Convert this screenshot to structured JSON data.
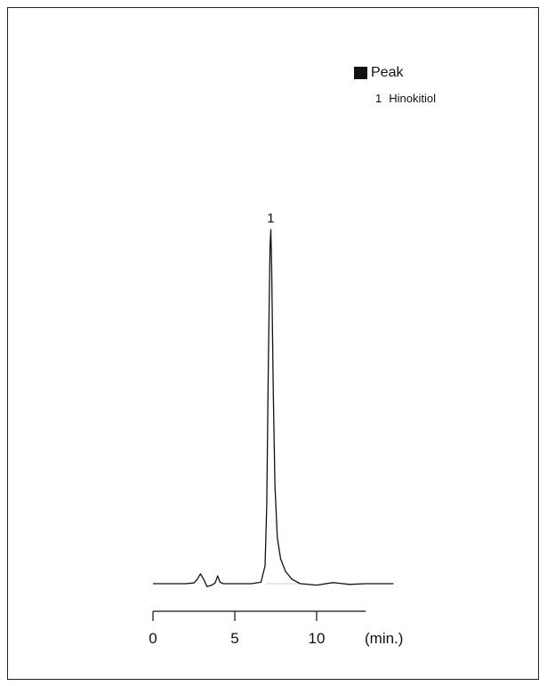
{
  "chart_data": {
    "type": "line",
    "title": "",
    "xlabel": "(min.)",
    "ylabel": "",
    "xlim": [
      0,
      13
    ],
    "x_ticks": [
      0,
      5,
      10
    ],
    "x_tick_labels": [
      "0",
      "5",
      "10"
    ],
    "grid": false,
    "legend": {
      "title": "Peak",
      "entries": [
        {
          "number": "1",
          "name": "Hinokitiol"
        }
      ]
    },
    "peak_labels": [
      {
        "label": "1",
        "x": 7.2
      }
    ],
    "series": [
      {
        "x": [
          0.0,
          1.0,
          2.0,
          2.5,
          2.7,
          2.9,
          3.1,
          3.3,
          3.6,
          3.8,
          3.95,
          4.1,
          4.3,
          5.0,
          6.0,
          6.6,
          6.85,
          6.95,
          7.05,
          7.15,
          7.2,
          7.25,
          7.35,
          7.45,
          7.6,
          7.8,
          8.1,
          8.5,
          9.0,
          10.0,
          11.0,
          12.0,
          13.0,
          14.7
        ],
        "y": [
          0.0,
          0.0,
          0.0,
          0.002,
          0.012,
          0.028,
          0.012,
          -0.008,
          -0.004,
          0.002,
          0.022,
          0.004,
          0.0,
          0.0,
          0.0,
          0.004,
          0.05,
          0.22,
          0.62,
          0.95,
          1.0,
          0.9,
          0.55,
          0.28,
          0.13,
          0.07,
          0.035,
          0.012,
          0.0,
          -0.004,
          0.003,
          -0.002,
          0.0,
          0.0
        ]
      }
    ]
  }
}
